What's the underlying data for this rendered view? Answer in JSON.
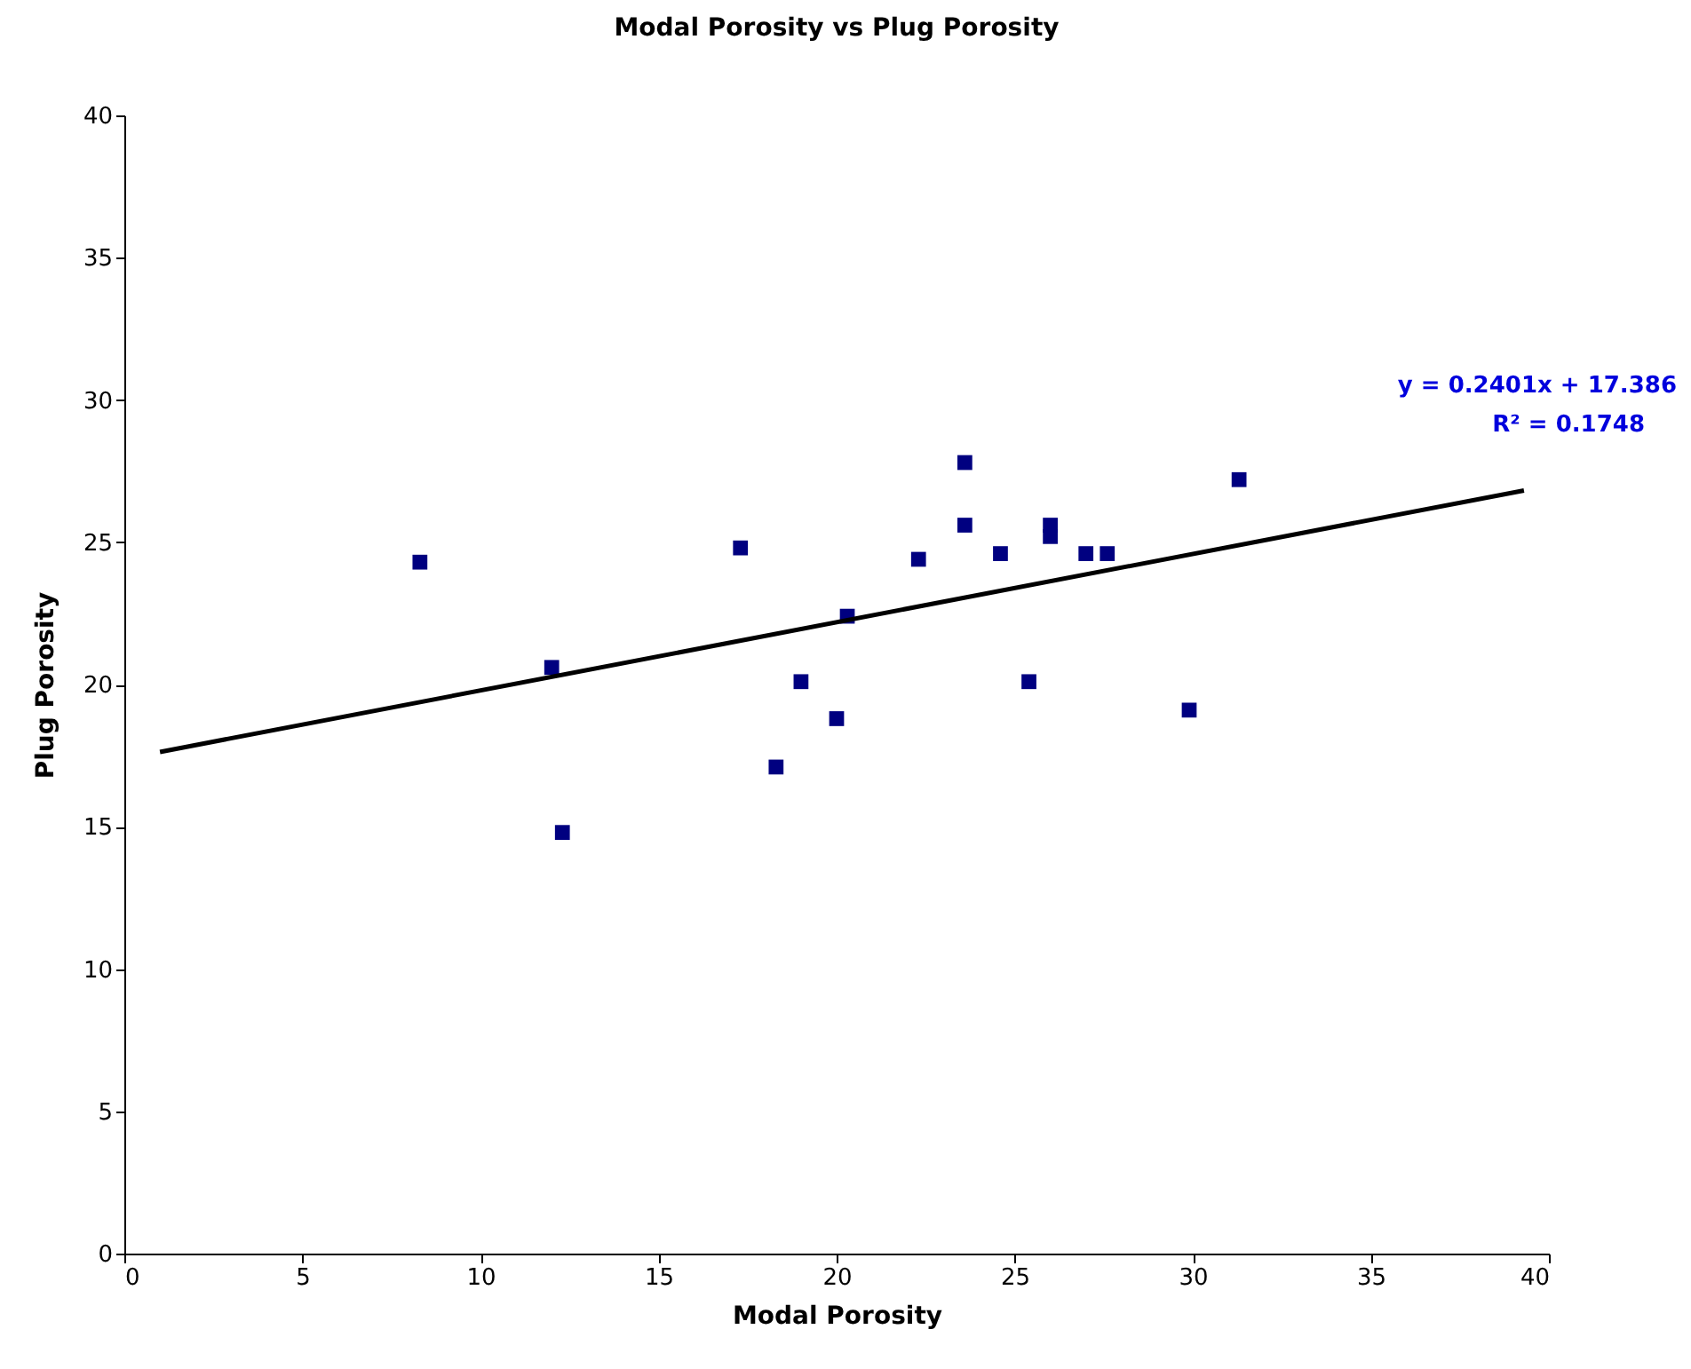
{
  "chart_data": {
    "type": "scatter",
    "title": "Modal Porosity vs Plug Porosity",
    "xlabel": "Modal Porosity",
    "ylabel": "Plug Porosity",
    "xlim": [
      0,
      40
    ],
    "ylim": [
      0,
      40
    ],
    "xticks": [
      0,
      5,
      10,
      15,
      20,
      25,
      30,
      35,
      40
    ],
    "yticks": [
      0,
      5,
      10,
      15,
      20,
      25,
      30,
      35,
      40
    ],
    "grid": false,
    "marker": "square",
    "annotations": [
      "y = 0.2401x + 17.386",
      "R² = 0.1748"
    ],
    "series": [
      {
        "color": "#000080",
        "x": [
          8.3,
          12.0,
          12.3,
          17.3,
          18.3,
          19.0,
          20.0,
          20.3,
          22.3,
          23.6,
          23.6,
          24.6,
          25.4,
          26.0,
          26.0,
          27.0,
          27.6,
          29.9,
          31.3
        ],
        "values": [
          24.3,
          20.6,
          14.8,
          24.8,
          17.1,
          20.1,
          18.8,
          22.4,
          24.4,
          27.8,
          25.6,
          24.6,
          20.1,
          25.6,
          25.2,
          24.6,
          24.6,
          19.1,
          27.2
        ]
      },
      {
        "type": "line",
        "marker": "none",
        "color": "#000000",
        "x": [
          1,
          39.3
        ],
        "values": [
          17.63,
          26.82
        ]
      }
    ]
  }
}
